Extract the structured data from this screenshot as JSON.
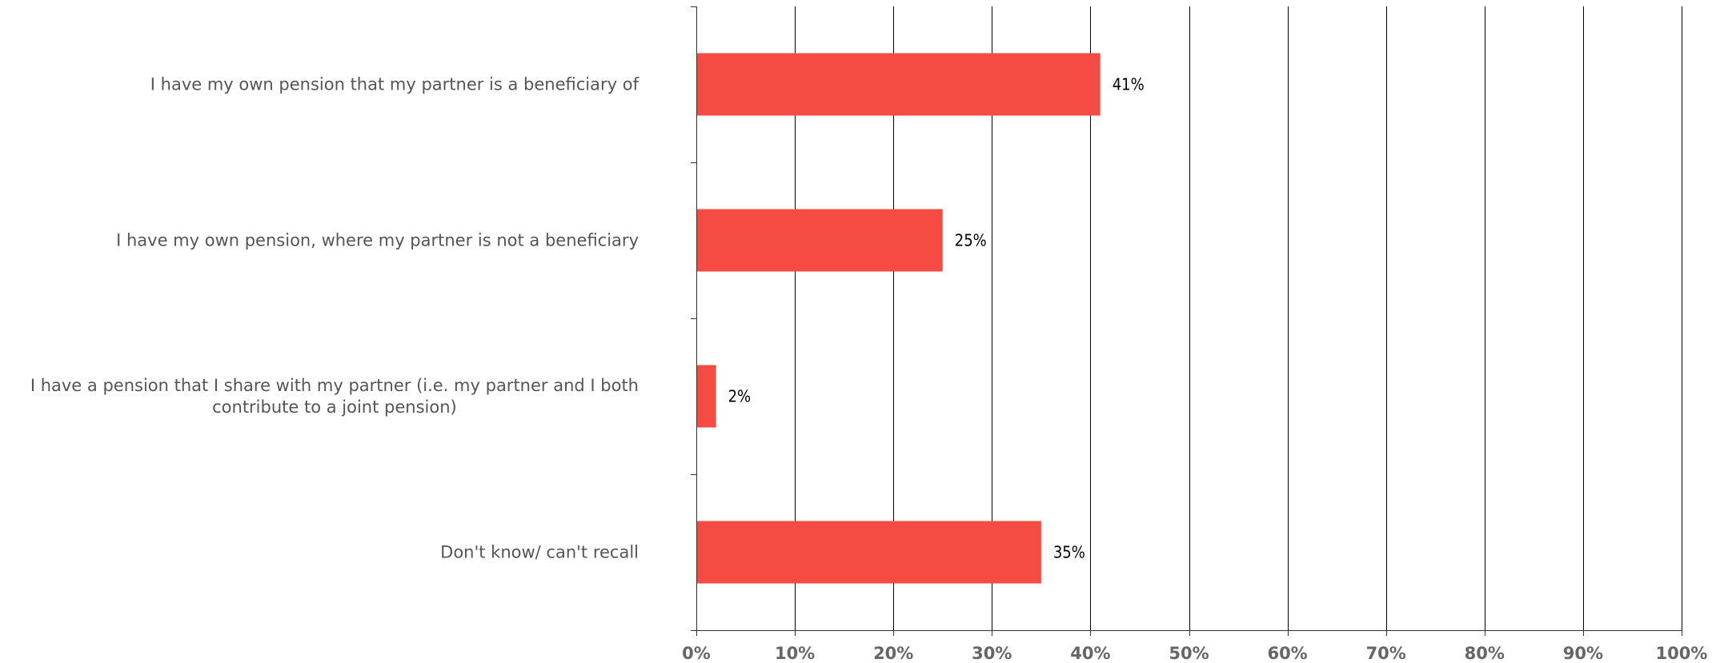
{
  "chart_data": {
    "type": "bar",
    "orientation": "horizontal",
    "title": "",
    "xlabel": "",
    "ylabel": "",
    "categories": [
      [
        "I have my own pension that my partner is a beneficiary of"
      ],
      [
        "I have my own pension, where my partner is not a beneficiary"
      ],
      [
        "I have a pension that I share with my partner (i.e. my partner and I both",
        "contribute to a joint pension)"
      ],
      [
        "Don't know/ can't recall"
      ]
    ],
    "values": [
      41,
      25,
      2,
      35
    ],
    "data_labels": [
      "41%",
      "25%",
      "2%",
      "35%"
    ],
    "xlim": [
      0,
      100
    ],
    "x_ticks": [
      0,
      10,
      20,
      30,
      40,
      50,
      60,
      70,
      80,
      90,
      100
    ],
    "x_tick_labels": [
      "0%",
      "10%",
      "20%",
      "30%",
      "40%",
      "50%",
      "60%",
      "70%",
      "80%",
      "90%",
      "100%"
    ],
    "grid": true,
    "legend": "none",
    "colors": {
      "bar": "#F44B42",
      "grid": "#000000",
      "axis": "#333333",
      "category_text": "#555555",
      "tick_text": "#666666",
      "data_label_text": "#000000"
    }
  }
}
